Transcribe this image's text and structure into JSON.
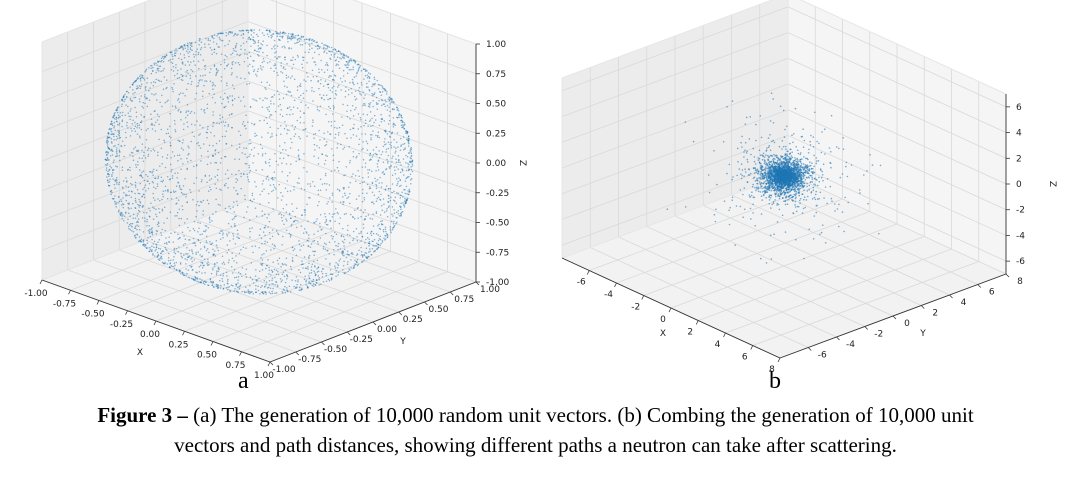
{
  "figure": {
    "panel_a_letter": "a",
    "panel_b_letter": "b",
    "caption_bold": "Figure 3 –",
    "caption_line1": " (a) The generation of 10,000 random unit vectors. (b) Combing the generation of 10,000 unit",
    "caption_line2": "vectors and path distances, showing different paths a neutron can take after scattering."
  },
  "chart_data": [
    {
      "type": "scatter",
      "projection": "3d",
      "title": "",
      "xlabel": "X",
      "ylabel": "Y",
      "zlabel": "Z",
      "xlim": [
        -1.0,
        1.0
      ],
      "ylim": [
        -1.0,
        1.0
      ],
      "zlim": [
        -1.0,
        1.0
      ],
      "x_ticks": [
        "-1.00",
        "-0.75",
        "-0.50",
        "-0.25",
        "0.00",
        "0.25",
        "0.50",
        "0.75",
        "1.00"
      ],
      "y_ticks": [
        "-1.00",
        "-0.75",
        "-0.50",
        "-0.25",
        "0.00",
        "0.25",
        "0.50",
        "0.75",
        "1.00"
      ],
      "z_ticks": [
        "-1.00",
        "-0.75",
        "-0.50",
        "-0.25",
        "0.00",
        "0.25",
        "0.50",
        "0.75",
        "1.00"
      ],
      "n_points": 10000,
      "distribution": "uniform on unit sphere surface",
      "radius": 1.0,
      "point_color": "#1f77b4",
      "grid": true
    },
    {
      "type": "scatter",
      "projection": "3d",
      "title": "",
      "xlabel": "X",
      "ylabel": "Y",
      "zlabel": "Z",
      "xlim": [
        -8,
        8
      ],
      "ylim": [
        -8,
        8
      ],
      "zlim": [
        -7,
        7
      ],
      "x_ticks": [
        "-6",
        "-4",
        "-2",
        "0",
        "2",
        "4",
        "6",
        "8"
      ],
      "y_ticks": [
        "-6",
        "-4",
        "-2",
        "0",
        "2",
        "4",
        "6",
        "8"
      ],
      "z_ticks": [
        "-6",
        "-4",
        "-2",
        "0",
        "2",
        "4",
        "6"
      ],
      "n_points": 10000,
      "distribution": "unit vectors scaled by path distance, concentrated near origin",
      "point_color": "#1f77b4",
      "grid": true
    }
  ]
}
